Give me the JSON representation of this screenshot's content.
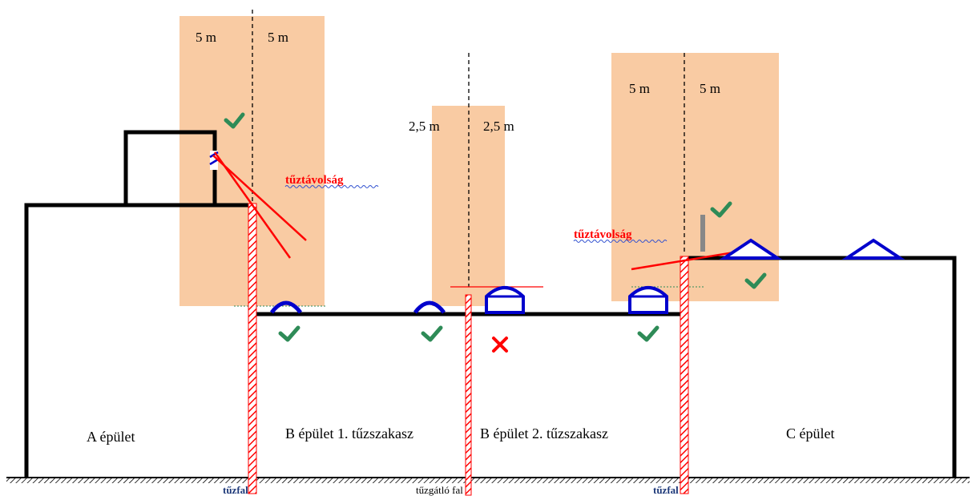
{
  "buildings": {
    "a": "A épület",
    "b1": "B épület 1. tűzszakasz",
    "b2": "B épület 2. tűzszakasz",
    "c": "C épület"
  },
  "zones": {
    "left": {
      "left_label": "5 m",
      "right_label": "5 m"
    },
    "middle": {
      "left_label": "2,5 m",
      "right_label": "2,5 m"
    },
    "right": {
      "left_label": "5 m",
      "right_label": "5 m"
    }
  },
  "annotations": {
    "fire_distance_1": "tűztávolság",
    "fire_distance_2": "tűztávolság"
  },
  "walls": {
    "firewall_left": "tűzfal",
    "fire_barrier": "tűzgátló fal",
    "firewall_right": "tűzfal"
  },
  "colors": {
    "zone": "#f9cba3",
    "outline": "#000000",
    "skylight": "#0000cc",
    "firewall": "#ff0000",
    "check": "#2e8b57",
    "cross": "#ff0000"
  }
}
